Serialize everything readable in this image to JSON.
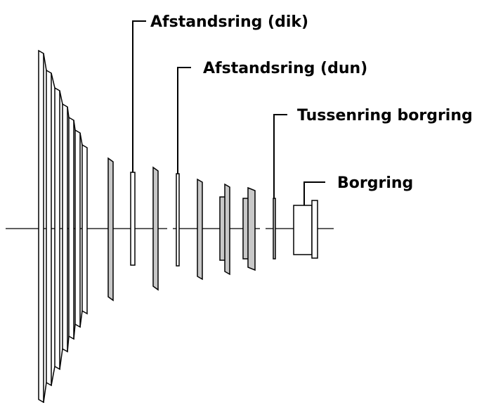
{
  "labels": {
    "spacer_thick": "Afstandsring (dik)",
    "spacer_thin": "Afstandsring (dun)",
    "intermediate_lockring": "Tussenring borgring",
    "lockring": "Borgring"
  },
  "colors": {
    "part_fill": "#c8c8c8",
    "outline": "#000000",
    "background": "#ffffff"
  }
}
